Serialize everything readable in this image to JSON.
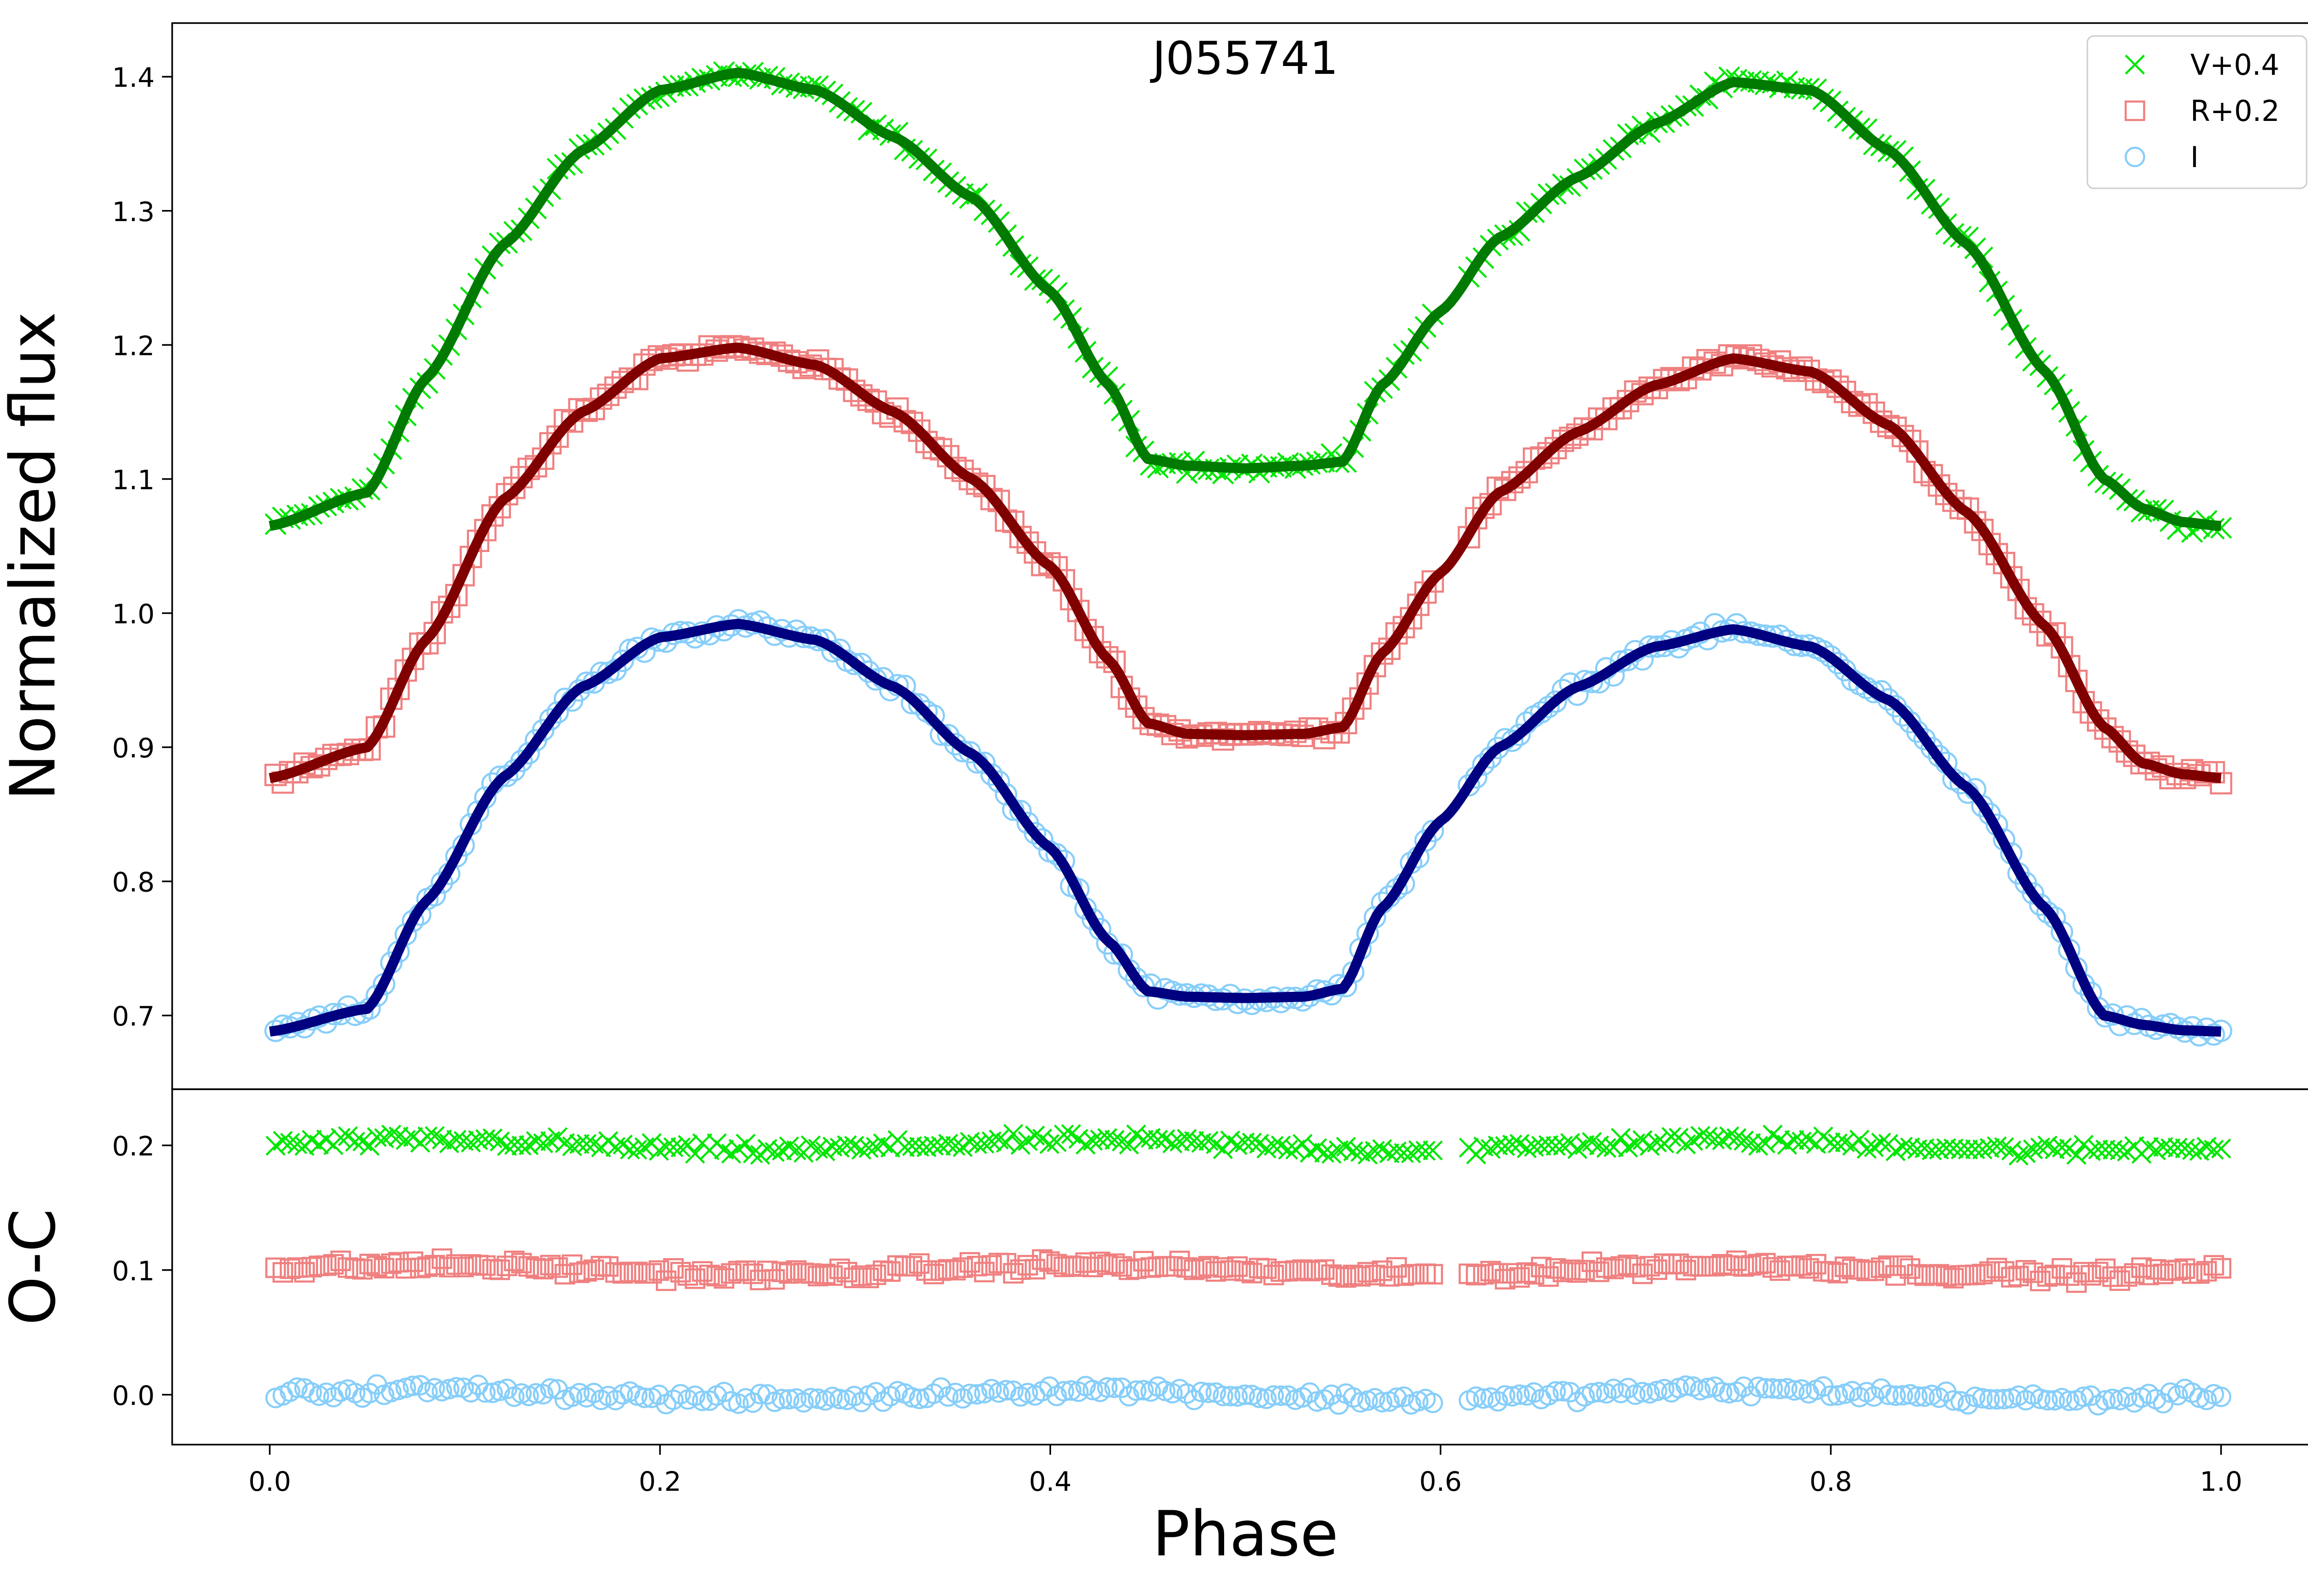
{
  "chart_data": {
    "type": "line",
    "title": "J055741",
    "xlabel": "Phase",
    "xlim": [
      -0.05,
      1.05
    ],
    "xticks": [
      0.0,
      0.2,
      0.4,
      0.6,
      0.8,
      1.0
    ],
    "xtick_labels": [
      "0.0",
      "0.2",
      "0.4",
      "0.6",
      "0.8",
      "1.0"
    ],
    "legend_position": "top-right",
    "panels": [
      {
        "name": "light-curve",
        "ylabel": "Normalized flux",
        "ylim": [
          0.645,
          1.44
        ],
        "yticks": [
          0.7,
          0.8,
          0.9,
          1.0,
          1.1,
          1.2,
          1.3,
          1.4
        ],
        "ytick_labels": [
          "0.7",
          "0.8",
          "0.9",
          "1.0",
          "1.1",
          "1.2",
          "1.3",
          "1.4"
        ],
        "series": [
          {
            "name": "V+0.4",
            "marker": "x",
            "color": "#00e600",
            "fit_color": "#007a00",
            "fit": {
              "x": [
                0.0,
                0.05,
                0.08,
                0.12,
                0.16,
                0.2,
                0.24,
                0.28,
                0.32,
                0.36,
                0.4,
                0.43,
                0.45,
                0.47,
                0.5,
                0.53,
                0.55,
                0.57,
                0.6,
                0.63,
                0.67,
                0.71,
                0.75,
                0.79,
                0.83,
                0.87,
                0.91,
                0.94,
                0.96,
                0.98,
                1.0
              ],
              "y": [
                1.065,
                1.09,
                1.175,
                1.275,
                1.345,
                1.39,
                1.403,
                1.39,
                1.355,
                1.31,
                1.24,
                1.17,
                1.115,
                1.11,
                1.108,
                1.11,
                1.113,
                1.17,
                1.225,
                1.28,
                1.325,
                1.365,
                1.396,
                1.39,
                1.345,
                1.275,
                1.18,
                1.1,
                1.078,
                1.068,
                1.065
              ]
            }
          },
          {
            "name": "R+0.2",
            "marker": "square",
            "color": "#f08080",
            "fit_color": "#800000",
            "fit": {
              "x": [
                0.0,
                0.05,
                0.08,
                0.12,
                0.16,
                0.2,
                0.24,
                0.28,
                0.32,
                0.36,
                0.4,
                0.43,
                0.45,
                0.47,
                0.5,
                0.53,
                0.55,
                0.57,
                0.6,
                0.63,
                0.67,
                0.71,
                0.75,
                0.79,
                0.83,
                0.87,
                0.91,
                0.94,
                0.96,
                0.98,
                1.0
              ],
              "y": [
                0.877,
                0.9,
                0.98,
                1.085,
                1.15,
                1.19,
                1.198,
                1.185,
                1.15,
                1.1,
                1.035,
                0.965,
                0.918,
                0.91,
                0.909,
                0.91,
                0.915,
                0.97,
                1.03,
                1.09,
                1.135,
                1.17,
                1.19,
                1.18,
                1.14,
                1.075,
                0.99,
                0.915,
                0.888,
                0.88,
                0.877
              ]
            }
          },
          {
            "name": "I",
            "marker": "circle",
            "color": "#87cefa",
            "fit_color": "#000080",
            "fit": {
              "x": [
                0.0,
                0.05,
                0.08,
                0.12,
                0.16,
                0.2,
                0.24,
                0.28,
                0.32,
                0.36,
                0.4,
                0.43,
                0.45,
                0.47,
                0.5,
                0.53,
                0.55,
                0.57,
                0.6,
                0.63,
                0.67,
                0.71,
                0.75,
                0.79,
                0.83,
                0.87,
                0.91,
                0.94,
                0.96,
                0.98,
                1.0
              ],
              "y": [
                0.688,
                0.705,
                0.785,
                0.878,
                0.945,
                0.982,
                0.992,
                0.98,
                0.945,
                0.895,
                0.825,
                0.755,
                0.718,
                0.714,
                0.713,
                0.714,
                0.72,
                0.78,
                0.845,
                0.9,
                0.945,
                0.975,
                0.988,
                0.975,
                0.935,
                0.87,
                0.78,
                0.7,
                0.693,
                0.689,
                0.688
              ]
            }
          }
        ]
      },
      {
        "name": "residuals",
        "ylabel": "O-C",
        "ylim": [
          -0.04,
          0.245
        ],
        "yticks": [
          0.0,
          0.1,
          0.2
        ],
        "ytick_labels": [
          "0.0",
          "0.1",
          "0.2"
        ],
        "series": [
          {
            "name": "V+0.4",
            "marker": "x",
            "color": "#00e600",
            "offset": 0.2
          },
          {
            "name": "R+0.2",
            "marker": "square",
            "color": "#f08080",
            "offset": 0.1
          },
          {
            "name": "I",
            "marker": "circle",
            "color": "#87cefa",
            "offset": 0.0
          }
        ]
      }
    ]
  }
}
